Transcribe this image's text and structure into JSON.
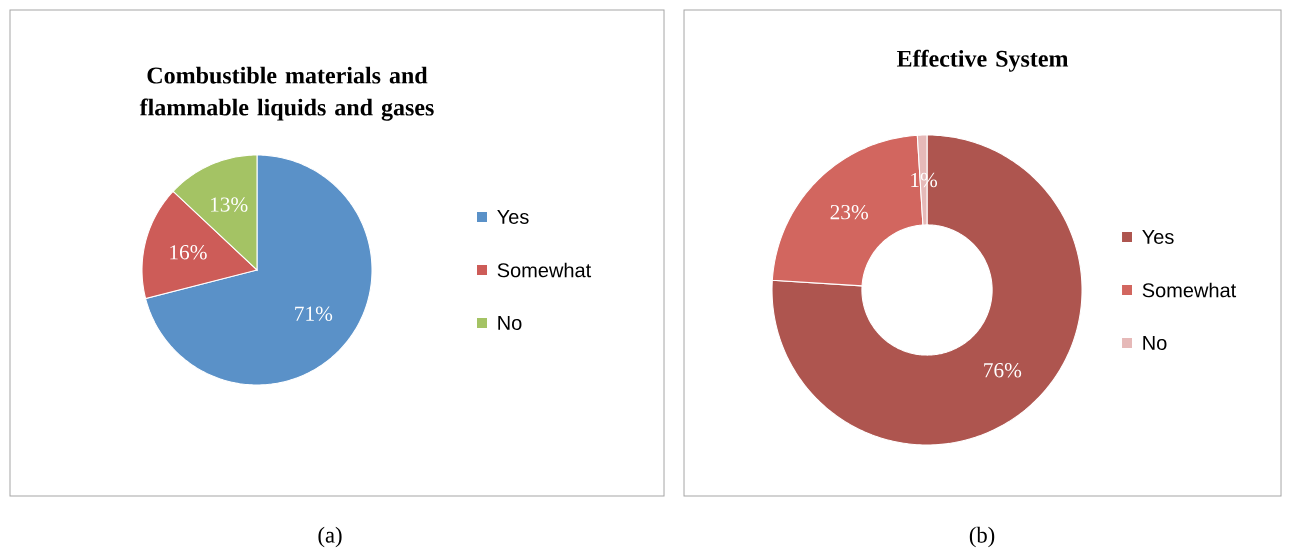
{
  "chart_data": [
    {
      "type": "pie",
      "title": "Combustible materials and flammable liquids and gases",
      "categories": [
        "Yes",
        "Somewhat",
        "No"
      ],
      "values": [
        71,
        16,
        13
      ],
      "value_labels": [
        "71%",
        "16%",
        "13%"
      ],
      "colors": [
        "#5a91c8",
        "#cd5c58",
        "#a4c364"
      ],
      "legend": "right",
      "annotations": [
        "(a)"
      ]
    },
    {
      "type": "donut",
      "title": "Effective System",
      "categories": [
        "Yes",
        "Somewhat",
        "No"
      ],
      "values": [
        76,
        23,
        1
      ],
      "value_labels": [
        "76%",
        "23%",
        "1%"
      ],
      "colors": [
        "#ae554f",
        "#d2665f",
        "#e6b9b8"
      ],
      "legend": "right",
      "annotations": [
        "(b)"
      ]
    }
  ]
}
